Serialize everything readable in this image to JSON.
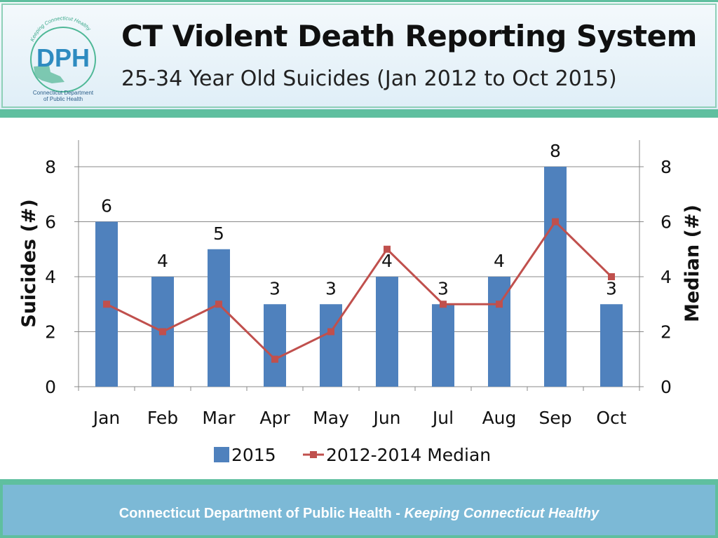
{
  "header": {
    "title": "CT Violent Death Reporting System",
    "subtitle": "25-34 Year Old Suicides (Jan 2012 to Oct 2015)",
    "logo": {
      "arc_text": "Keeping Connecticut Healthy",
      "letters": "DPH",
      "caption_line1": "Connecticut Department",
      "caption_line2": "of Public Health"
    }
  },
  "chart_data": {
    "type": "bar",
    "categories": [
      "Jan",
      "Feb",
      "Mar",
      "Apr",
      "May",
      "Jun",
      "Jul",
      "Aug",
      "Sep",
      "Oct"
    ],
    "series": [
      {
        "name": "2015",
        "type": "bar",
        "axis": "left",
        "values": [
          6,
          4,
          5,
          3,
          3,
          4,
          3,
          4,
          8,
          3
        ],
        "color": "#4f81bd",
        "data_labels": true
      },
      {
        "name": "2012-2014 Median",
        "type": "line",
        "axis": "right",
        "values": [
          3,
          2,
          3,
          1,
          2,
          5,
          3,
          3,
          6,
          4
        ],
        "color": "#c0504d"
      }
    ],
    "ylabel": "Suicides (#)",
    "y2label": "Median (#)",
    "ylim": [
      0,
      8
    ],
    "y2lim": [
      0,
      8
    ],
    "yticks": [
      0,
      2,
      4,
      6,
      8
    ],
    "grid": true,
    "legend": "bottom"
  },
  "footer": {
    "org": "Connecticut Department of Public Health",
    "separator": " - ",
    "tagline": "Keeping Connecticut Healthy"
  }
}
